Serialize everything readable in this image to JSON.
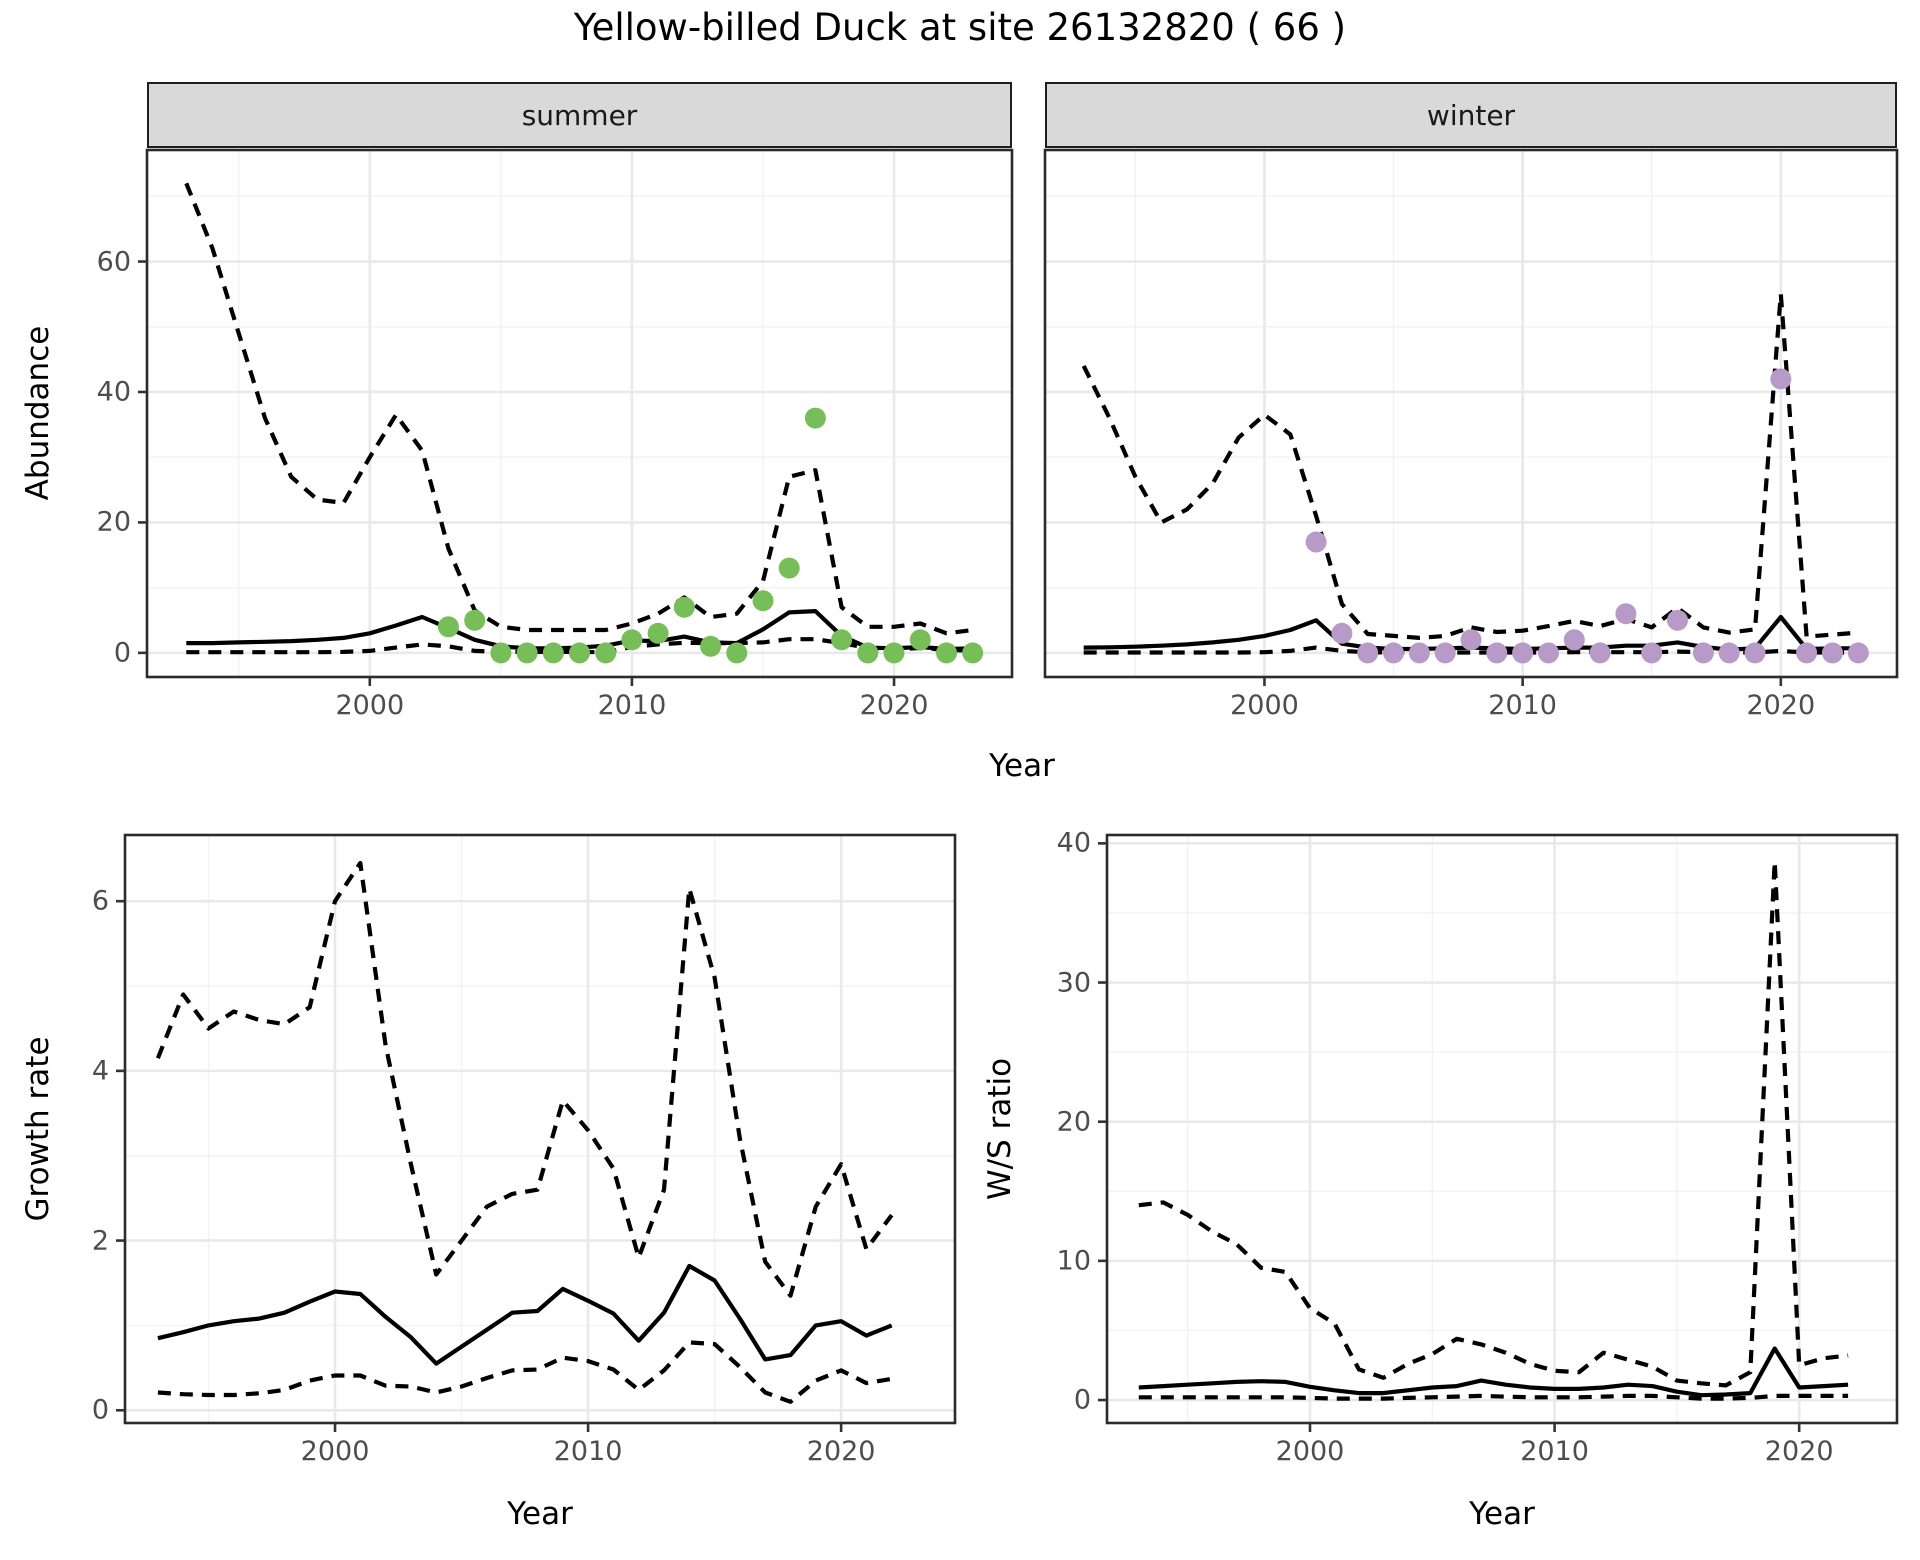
{
  "title": "Yellow-billed Duck at site 26132820 ( 66 )",
  "facets": {
    "summer_label": "summer",
    "winter_label": "winter"
  },
  "axis_labels": {
    "abundance": "Abundance",
    "year": "Year",
    "growth_rate": "Growth rate",
    "ws_ratio": "W/S ratio"
  },
  "colors": {
    "summer_dot": "#77be59",
    "winter_dot": "#b89ac8",
    "line": "#000000",
    "strip_bg": "#d9d9d9",
    "grid_major": "#e9e9e9",
    "grid_minor": "#f2f2f2",
    "panel_border": "#2b2b2b",
    "axis_text": "#4d4d4d"
  },
  "chart_data": [
    {
      "type": "line",
      "facet": "summer",
      "ylabel": "Abundance",
      "xlabel": "Year",
      "x": [
        1993,
        1994,
        1995,
        1996,
        1997,
        1998,
        1999,
        2000,
        2001,
        2002,
        2003,
        2004,
        2005,
        2006,
        2007,
        2008,
        2009,
        2010,
        2011,
        2012,
        2013,
        2014,
        2015,
        2016,
        2017,
        2018,
        2019,
        2020,
        2021,
        2022,
        2023
      ],
      "series": [
        {
          "name": "upper_ci",
          "style": "dashed",
          "values": [
            72,
            62,
            49,
            36,
            27,
            23.5,
            23,
            30,
            36.5,
            31,
            16,
            6.5,
            4,
            3.5,
            3.5,
            3.5,
            3.5,
            4.5,
            6,
            8.5,
            5.5,
            6,
            11,
            27,
            28,
            7,
            4,
            4,
            4.5,
            3,
            3.5
          ]
        },
        {
          "name": "median",
          "style": "solid",
          "values": [
            1.5,
            1.5,
            1.6,
            1.7,
            1.8,
            2,
            2.3,
            3,
            4.2,
            5.5,
            3.8,
            2,
            1,
            0.7,
            0.7,
            0.8,
            1.1,
            1.9,
            1.8,
            2.5,
            1.6,
            1.5,
            3.6,
            6.2,
            6.4,
            2.6,
            0.8,
            0.7,
            0.9,
            0.6,
            0.7
          ]
        },
        {
          "name": "lower_ci",
          "style": "dashed",
          "values": [
            0.1,
            0.1,
            0.1,
            0.1,
            0.1,
            0.1,
            0.15,
            0.3,
            0.8,
            1.3,
            1,
            0.3,
            0.15,
            0.15,
            0.15,
            0.15,
            0.1,
            0.9,
            1.3,
            1.55,
            1.5,
            1.5,
            1.6,
            2.1,
            2.1,
            1.5,
            0.75,
            0.55,
            0.75,
            0.45,
            0.35
          ]
        }
      ],
      "points": [
        null,
        null,
        null,
        null,
        null,
        null,
        null,
        null,
        null,
        null,
        4,
        5,
        0,
        0,
        0,
        0,
        0,
        2,
        3,
        7,
        1,
        0,
        8,
        13,
        36,
        2,
        0,
        0,
        2,
        0,
        0
      ],
      "xlim": [
        1991.5,
        2024.5
      ],
      "ylim": [
        -3.7,
        77.1
      ],
      "x_ticks": [
        2000,
        2010,
        2020
      ],
      "x_tick_labels": [
        "2000",
        "2010",
        "2020"
      ],
      "x_minor": [
        1995,
        2005,
        2015
      ],
      "y_ticks": [
        0,
        20,
        40,
        60
      ],
      "y_tick_labels": [
        "0",
        "20",
        "40",
        "60"
      ],
      "y_minor": [
        10,
        30,
        50,
        70
      ],
      "grid": true,
      "legend": "none"
    },
    {
      "type": "line",
      "facet": "winter",
      "ylabel": "Abundance",
      "xlabel": "Year",
      "x": [
        1993,
        1994,
        1995,
        1996,
        1997,
        1998,
        1999,
        2000,
        2001,
        2002,
        2003,
        2004,
        2005,
        2006,
        2007,
        2008,
        2009,
        2010,
        2011,
        2012,
        2013,
        2014,
        2015,
        2016,
        2017,
        2018,
        2019,
        2020,
        2021,
        2022,
        2023
      ],
      "series": [
        {
          "name": "upper_ci",
          "style": "dashed",
          "values": [
            44,
            36,
            27,
            20,
            22,
            26,
            33,
            36.5,
            33.5,
            21,
            7.5,
            2.9,
            2.6,
            2.3,
            2.6,
            3.9,
            3.2,
            3.4,
            4.1,
            4.9,
            4.1,
            5.2,
            3.9,
            6.9,
            3.9,
            3.1,
            3.6,
            55,
            2.5,
            2.8,
            3.1
          ]
        },
        {
          "name": "median",
          "style": "solid",
          "values": [
            0.8,
            0.85,
            0.95,
            1.1,
            1.3,
            1.6,
            2,
            2.6,
            3.5,
            5,
            1.4,
            0.8,
            0.6,
            0.6,
            0.7,
            0.8,
            0.7,
            0.6,
            0.7,
            0.8,
            0.8,
            1.1,
            1.1,
            1.6,
            0.9,
            0.5,
            0.7,
            5.5,
            0.6,
            0.7,
            0.7
          ]
        },
        {
          "name": "lower_ci",
          "style": "dashed",
          "values": [
            0.05,
            0.05,
            0.05,
            0.05,
            0.05,
            0.05,
            0.05,
            0.1,
            0.3,
            0.8,
            0.3,
            0.1,
            0.05,
            0.05,
            0.05,
            0.05,
            0.05,
            0.05,
            0.05,
            0.1,
            0.1,
            0.1,
            0.1,
            0.2,
            0.1,
            0.05,
            0.05,
            0.3,
            0.05,
            0.05,
            0.05
          ]
        }
      ],
      "points": [
        null,
        null,
        null,
        null,
        null,
        null,
        null,
        null,
        null,
        17,
        3,
        0,
        0,
        0,
        0,
        2,
        0,
        0,
        0,
        2,
        0,
        6,
        0,
        5,
        0,
        0,
        0,
        42,
        0,
        0,
        0
      ],
      "xlim": [
        1991.5,
        2024.5
      ],
      "ylim": [
        -3.7,
        77.1
      ],
      "x_ticks": [
        2000,
        2010,
        2020
      ],
      "x_tick_labels": [
        "2000",
        "2010",
        "2020"
      ],
      "x_minor": [
        1995,
        2005,
        2015
      ],
      "y_ticks": [
        0,
        20,
        40,
        60
      ],
      "y_tick_labels": [
        "0",
        "20",
        "40",
        "60"
      ],
      "y_minor": [
        10,
        30,
        50,
        70
      ],
      "grid": true,
      "legend": "none"
    },
    {
      "type": "line",
      "facet": "",
      "ylabel": "Growth rate",
      "xlabel": "Year",
      "x": [
        1993,
        1994,
        1995,
        1996,
        1997,
        1998,
        1999,
        2000,
        2001,
        2002,
        2003,
        2004,
        2005,
        2006,
        2007,
        2008,
        2009,
        2010,
        2011,
        2012,
        2013,
        2014,
        2015,
        2016,
        2017,
        2018,
        2019,
        2020,
        2021,
        2022
      ],
      "series": [
        {
          "name": "upper_ci",
          "style": "dashed",
          "values": [
            4.15,
            4.9,
            4.5,
            4.7,
            4.6,
            4.55,
            4.75,
            6.0,
            6.45,
            4.3,
            2.9,
            1.6,
            2.0,
            2.4,
            2.55,
            2.6,
            3.65,
            3.3,
            2.85,
            1.8,
            2.6,
            6.15,
            5.1,
            3.2,
            1.75,
            1.35,
            2.4,
            2.9,
            1.9,
            2.3
          ]
        },
        {
          "name": "median",
          "style": "solid",
          "values": [
            0.85,
            0.92,
            1.0,
            1.05,
            1.08,
            1.15,
            1.28,
            1.4,
            1.37,
            1.1,
            0.86,
            0.55,
            0.75,
            0.95,
            1.15,
            1.17,
            1.43,
            1.29,
            1.14,
            0.82,
            1.15,
            1.7,
            1.53,
            1.08,
            0.6,
            0.65,
            1.0,
            1.05,
            0.88,
            1.0
          ]
        },
        {
          "name": "lower_ci",
          "style": "dashed",
          "values": [
            0.21,
            0.19,
            0.18,
            0.18,
            0.2,
            0.24,
            0.35,
            0.41,
            0.41,
            0.29,
            0.28,
            0.21,
            0.28,
            0.38,
            0.47,
            0.48,
            0.62,
            0.58,
            0.48,
            0.24,
            0.47,
            0.8,
            0.78,
            0.51,
            0.21,
            0.1,
            0.35,
            0.47,
            0.32,
            0.37
          ]
        }
      ],
      "points": null,
      "xlim": [
        1991.7,
        2024.5
      ],
      "ylim": [
        -0.15,
        6.78
      ],
      "x_ticks": [
        2000,
        2010,
        2020
      ],
      "x_tick_labels": [
        "2000",
        "2010",
        "2020"
      ],
      "x_minor": [
        1995,
        2005,
        2015
      ],
      "y_ticks": [
        0,
        2,
        4,
        6
      ],
      "y_tick_labels": [
        "0",
        "2",
        "4",
        "6"
      ],
      "y_minor": [
        1,
        3,
        5
      ],
      "grid": true,
      "legend": "none"
    },
    {
      "type": "line",
      "facet": "",
      "ylabel": "W/S ratio",
      "xlabel": "Year",
      "x": [
        1993,
        1994,
        1995,
        1996,
        1997,
        1998,
        1999,
        2000,
        2001,
        2002,
        2003,
        2004,
        2005,
        2006,
        2007,
        2008,
        2009,
        2010,
        2011,
        2012,
        2013,
        2014,
        2015,
        2016,
        2017,
        2018,
        2019,
        2020,
        2021,
        2022
      ],
      "series": [
        {
          "name": "upper_ci",
          "style": "dashed",
          "values": [
            14,
            14.2,
            13.3,
            12.1,
            11.2,
            9.5,
            9.2,
            6.6,
            5.5,
            2.2,
            1.6,
            2.6,
            3.3,
            4.4,
            4.0,
            3.4,
            2.6,
            2.1,
            2.0,
            3.4,
            2.9,
            2.4,
            1.4,
            1.2,
            1.05,
            2.0,
            38.7,
            2.5,
            3.0,
            3.2
          ]
        },
        {
          "name": "median",
          "style": "solid",
          "values": [
            0.9,
            1.0,
            1.1,
            1.2,
            1.3,
            1.35,
            1.3,
            0.95,
            0.7,
            0.5,
            0.5,
            0.7,
            0.9,
            1.0,
            1.4,
            1.1,
            0.9,
            0.8,
            0.8,
            0.9,
            1.1,
            1.0,
            0.6,
            0.35,
            0.4,
            0.5,
            3.7,
            0.9,
            1.0,
            1.1
          ]
        },
        {
          "name": "lower_ci",
          "style": "dashed",
          "values": [
            0.2,
            0.2,
            0.2,
            0.2,
            0.2,
            0.2,
            0.2,
            0.15,
            0.1,
            0.1,
            0.1,
            0.15,
            0.2,
            0.25,
            0.3,
            0.25,
            0.2,
            0.2,
            0.2,
            0.25,
            0.3,
            0.3,
            0.2,
            0.1,
            0.1,
            0.15,
            0.3,
            0.3,
            0.3,
            0.3
          ]
        }
      ],
      "points": null,
      "xlim": [
        1991.7,
        2024.0
      ],
      "ylim": [
        -1.65,
        40.6
      ],
      "x_ticks": [
        2000,
        2010,
        2020
      ],
      "x_tick_labels": [
        "2000",
        "2010",
        "2020"
      ],
      "x_minor": [
        1995,
        2005,
        2015
      ],
      "y_ticks": [
        0,
        10,
        20,
        30,
        40
      ],
      "y_tick_labels": [
        "0",
        "10",
        "20",
        "30",
        "40"
      ],
      "y_minor": [
        5,
        15,
        25,
        35
      ],
      "grid": true,
      "legend": "none"
    }
  ]
}
